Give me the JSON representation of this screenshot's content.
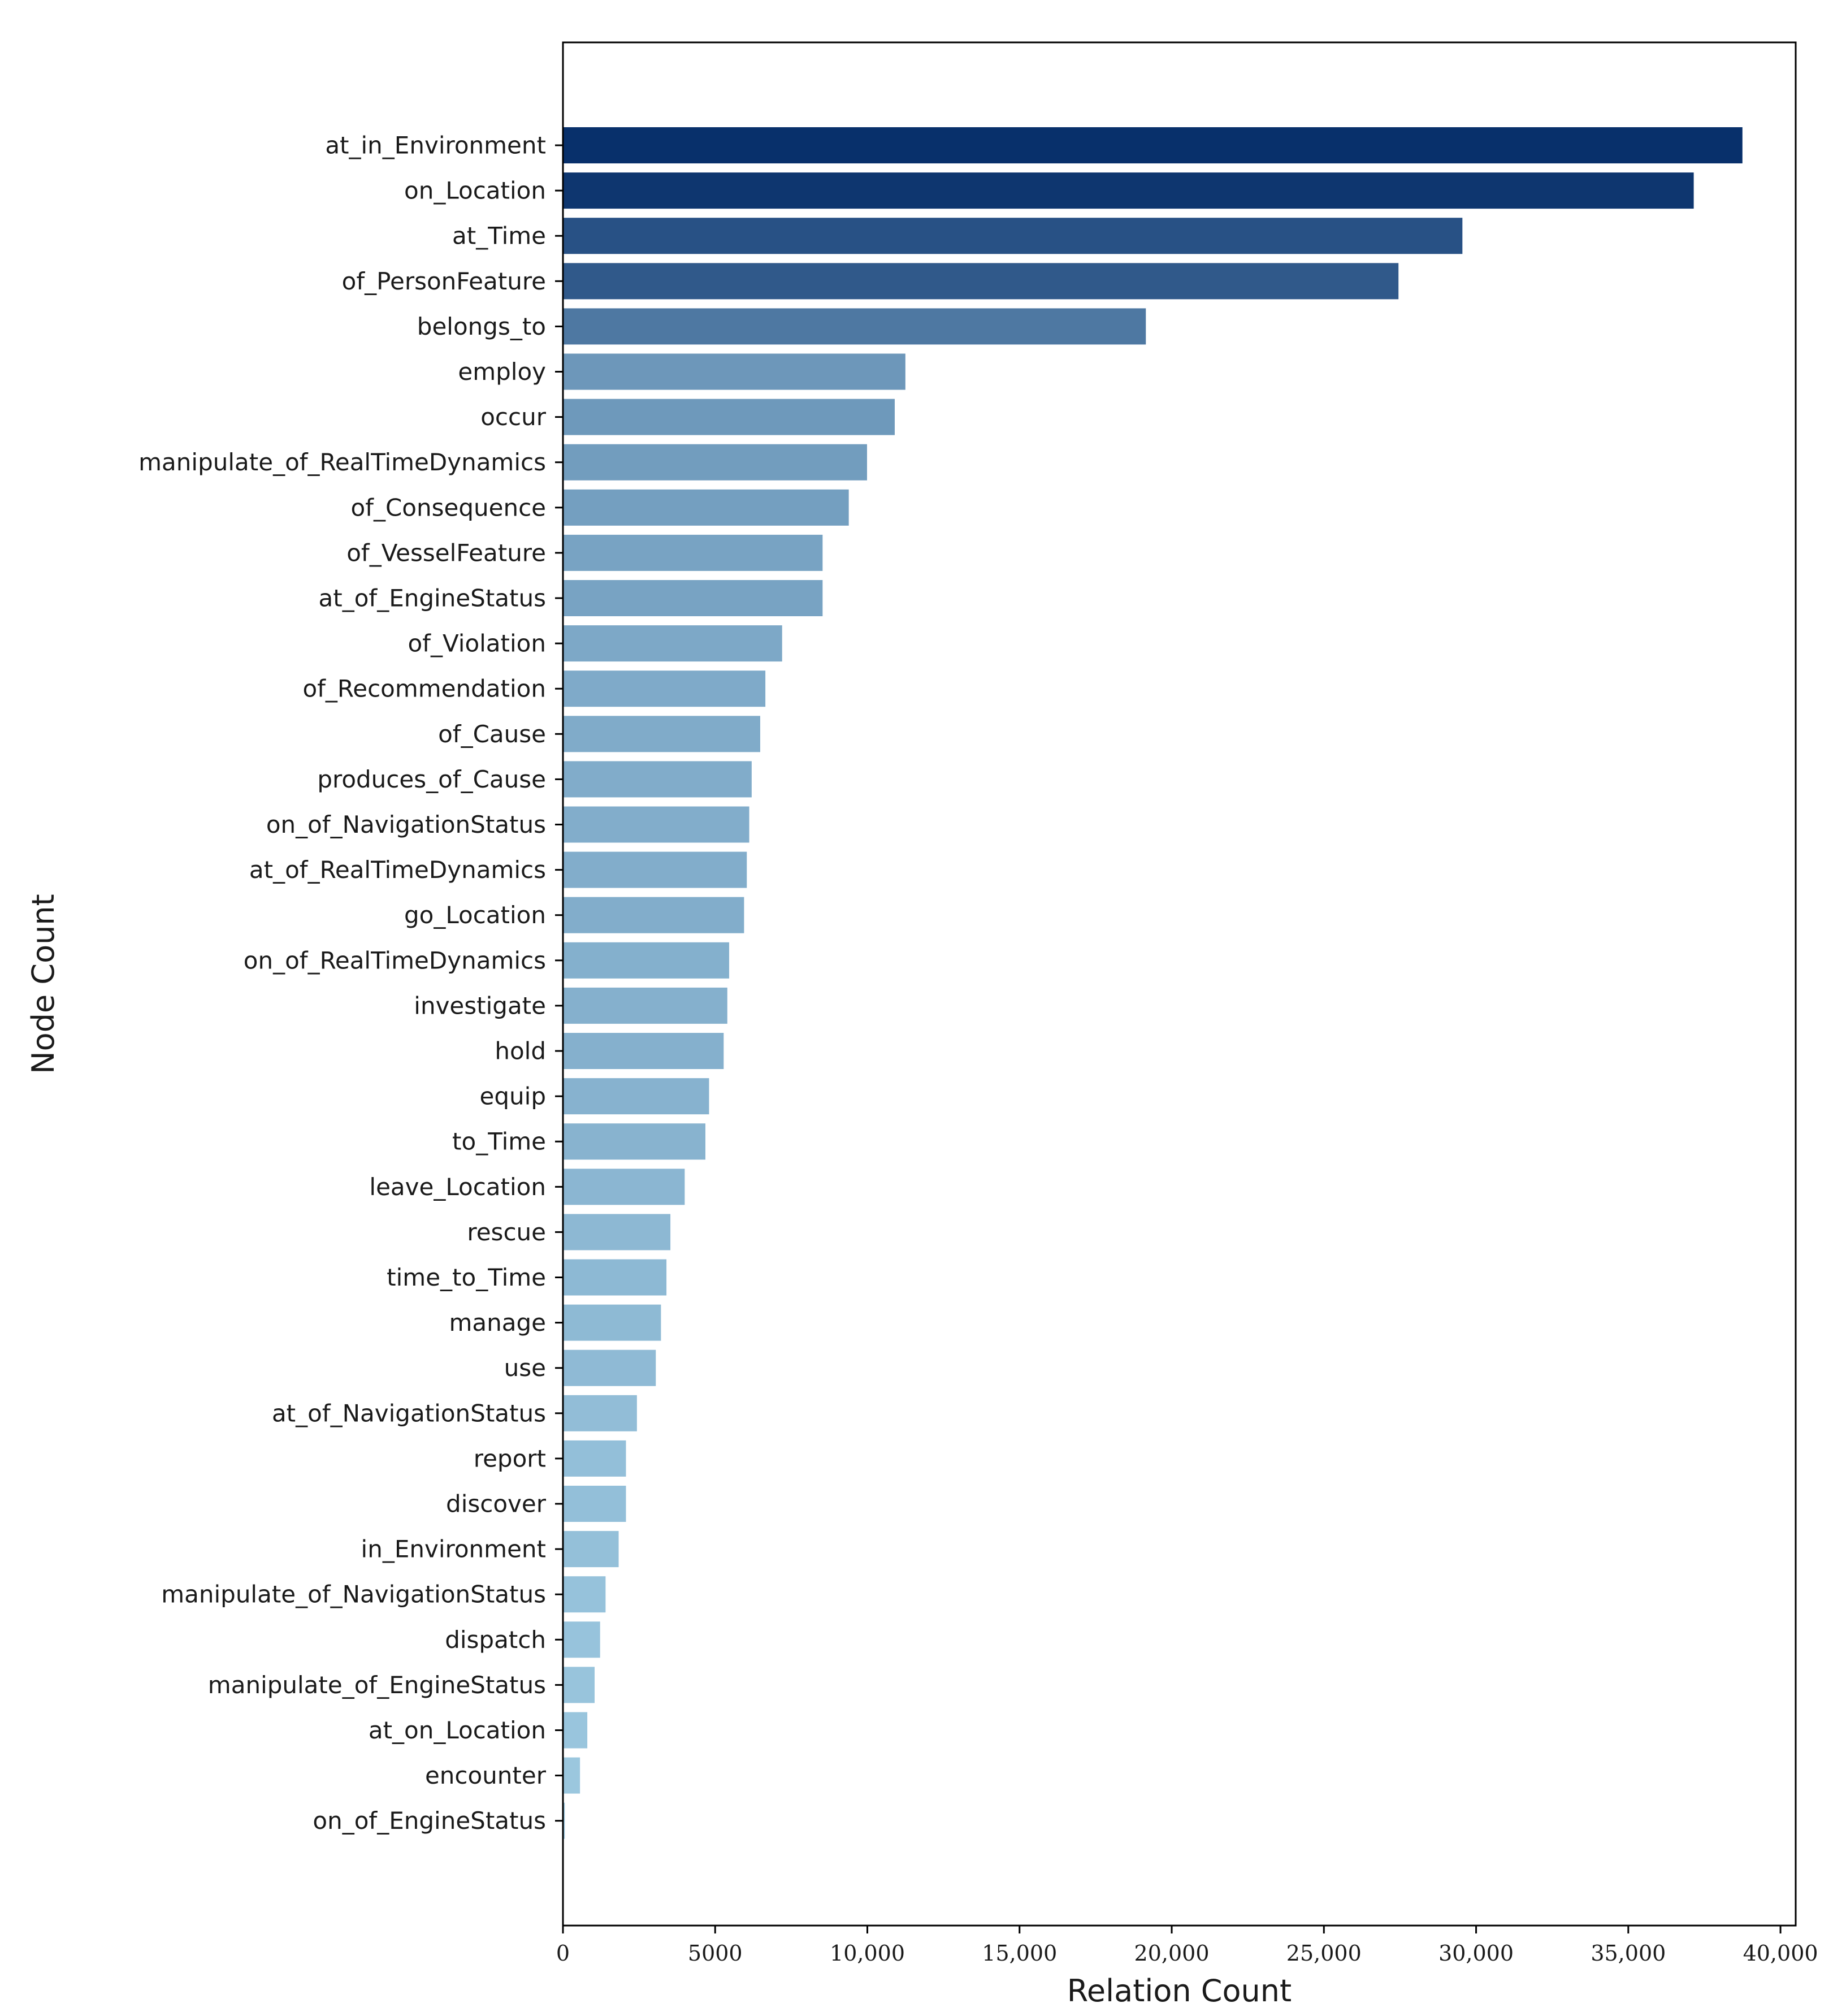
{
  "chart_data": {
    "type": "bar",
    "orientation": "horizontal",
    "xlabel": "Relation Count",
    "ylabel": "Node Count",
    "xlim": [
      0,
      40500
    ],
    "xticks": [
      0,
      5000,
      10000,
      15000,
      20000,
      25000,
      30000,
      35000,
      40000
    ],
    "xtick_labels": [
      "0",
      "5000",
      "10,000",
      "15,000",
      "20,000",
      "25,000",
      "30,000",
      "35,000",
      "40,000"
    ],
    "grid": false,
    "colormap": "Blues (darker = larger value)",
    "bar_colors": {
      "max": "#08306b",
      "min": "#9ecae1"
    },
    "categories": [
      "at_in_Environment",
      "on_Location",
      "at_Time",
      "of_PersonFeature",
      "belongs_to",
      "employ",
      "occur",
      "manipulate_of_RealTimeDynamics",
      "of_Consequence",
      "of_VesselFeature",
      "at_of_EngineStatus",
      "of_Violation",
      "of_Recommendation",
      "of_Cause",
      "produces_of_Cause",
      "on_of_NavigationStatus",
      "at_of_RealTimeDynamics",
      "go_Location",
      "on_of_RealTimeDynamics",
      "investigate",
      "hold",
      "equip",
      "to_Time",
      "leave_Location",
      "rescue",
      "time_to_Time",
      "manage",
      "use",
      "at_of_NavigationStatus",
      "report",
      "discover",
      "in_Environment",
      "manipulate_of_NavigationStatus",
      "dispatch",
      "manipulate_of_EngineStatus",
      "at_on_Location",
      "encounter",
      "on_of_EngineStatus"
    ],
    "values": [
      38750,
      37150,
      29550,
      27450,
      19150,
      11250,
      10900,
      9990,
      9390,
      8530,
      8530,
      7200,
      6650,
      6480,
      6200,
      6120,
      6040,
      5950,
      5460,
      5400,
      5280,
      4800,
      4680,
      4000,
      3530,
      3400,
      3220,
      3050,
      2430,
      2070,
      2070,
      1830,
      1400,
      1220,
      1040,
      800,
      560,
      60
    ]
  }
}
